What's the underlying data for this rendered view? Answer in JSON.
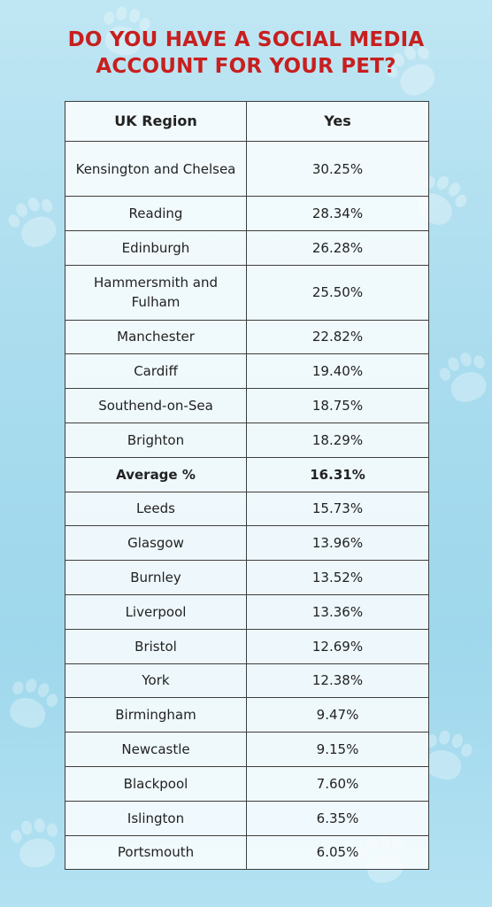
{
  "title_lines": [
    "DO YOU HAVE A SOCIAL MEDIA",
    "ACCOUNT FOR YOUR PET?"
  ],
  "header": {
    "region": "UK Region",
    "yes": "Yes"
  },
  "rows": [
    {
      "region": "Kensington and Chelsea",
      "yes": "30.25%"
    },
    {
      "region": "Reading",
      "yes": "28.34%"
    },
    {
      "region": "Edinburgh",
      "yes": "26.28%"
    },
    {
      "region": "Hammersmith and Fulham",
      "yes": "25.50%"
    },
    {
      "region": "Manchester",
      "yes": "22.82%"
    },
    {
      "region": "Cardiff",
      "yes": "19.40%"
    },
    {
      "region": "Southend-on-Sea",
      "yes": "18.75%"
    },
    {
      "region": "Brighton",
      "yes": "18.29%"
    },
    {
      "region": "Average %",
      "yes": "16.31%"
    },
    {
      "region": "Leeds",
      "yes": "15.73%"
    },
    {
      "region": "Glasgow",
      "yes": "13.96%"
    },
    {
      "region": "Burnley",
      "yes": "13.52%"
    },
    {
      "region": "Liverpool",
      "yes": "13.36%"
    },
    {
      "region": "Bristol",
      "yes": "12.69%"
    },
    {
      "region": "York",
      "yes": "12.38%"
    },
    {
      "region": "Birmingham",
      "yes": "9.47%"
    },
    {
      "region": "Newcastle",
      "yes": "9.15%"
    },
    {
      "region": "Blackpool",
      "yes": "7.60%"
    },
    {
      "region": "Islington",
      "yes": "6.35%"
    },
    {
      "region": "Portsmouth",
      "yes": "6.05%"
    }
  ],
  "colors": {
    "title": "#c81f1f",
    "border": "#3e3e3e",
    "background": "#a9dcee"
  },
  "chart_data": {
    "type": "table",
    "columns": [
      "UK Region",
      "Yes"
    ],
    "rows": [
      [
        "Kensington and Chelsea",
        "30.25%"
      ],
      [
        "Reading",
        "28.34%"
      ],
      [
        "Edinburgh",
        "26.28%"
      ],
      [
        "Hammersmith and Fulham",
        "25.50%"
      ],
      [
        "Manchester",
        "22.82%"
      ],
      [
        "Cardiff",
        "19.40%"
      ],
      [
        "Southend-on-Sea",
        "18.75%"
      ],
      [
        "Brighton",
        "18.29%"
      ],
      [
        "Average %",
        "16.31%"
      ],
      [
        "Leeds",
        "15.73%"
      ],
      [
        "Glasgow",
        "13.96%"
      ],
      [
        "Burnley",
        "13.52%"
      ],
      [
        "Liverpool",
        "13.36%"
      ],
      [
        "Bristol",
        "12.69%"
      ],
      [
        "York",
        "12.38%"
      ],
      [
        "Birmingham",
        "9.47%"
      ],
      [
        "Newcastle",
        "9.15%"
      ],
      [
        "Blackpool",
        "7.60%"
      ],
      [
        "Islington",
        "6.35%"
      ],
      [
        "Portsmouth",
        "6.05%"
      ]
    ]
  }
}
